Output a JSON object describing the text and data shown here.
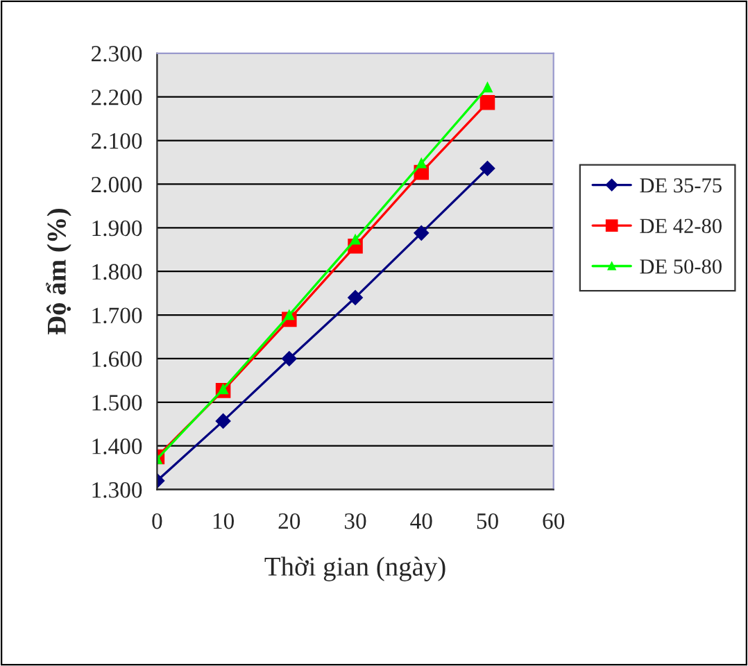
{
  "chart_data": {
    "type": "line",
    "xlabel": "Thời gian (ngày)",
    "ylabel": "Độ ẩm (%)",
    "x": [
      0,
      10,
      20,
      30,
      40,
      50
    ],
    "series": [
      {
        "name": "DE 35-75",
        "color": "#000080",
        "marker": "diamond",
        "values": [
          1.32,
          1.457,
          1.6,
          1.74,
          1.888,
          2.036
        ]
      },
      {
        "name": "DE 42-80",
        "color": "#ff0000",
        "marker": "square",
        "values": [
          1.375,
          1.527,
          1.69,
          1.858,
          2.027,
          2.187
        ]
      },
      {
        "name": "DE 50-80",
        "color": "#00ff00",
        "marker": "triangle",
        "values": [
          1.37,
          1.53,
          1.7,
          1.873,
          2.048,
          2.222
        ]
      }
    ],
    "xlim": [
      0,
      60
    ],
    "xticks": [
      0,
      10,
      20,
      30,
      40,
      50,
      60
    ],
    "ylim": [
      1.3,
      2.3
    ],
    "yticks": [
      {
        "value": 1.3,
        "label": "1.300"
      },
      {
        "value": 1.4,
        "label": "1.400"
      },
      {
        "value": 1.5,
        "label": "1.500"
      },
      {
        "value": 1.6,
        "label": "1.600"
      },
      {
        "value": 1.7,
        "label": "1.700"
      },
      {
        "value": 1.8,
        "label": "1.800"
      },
      {
        "value": 1.9,
        "label": "1.900"
      },
      {
        "value": 2.0,
        "label": "2.000"
      },
      {
        "value": 2.1,
        "label": "2.100"
      },
      {
        "value": 2.2,
        "label": "2.200"
      },
      {
        "value": 2.3,
        "label": "2.300"
      }
    ],
    "grid": "y",
    "legend": "right",
    "line_style": "solid"
  }
}
